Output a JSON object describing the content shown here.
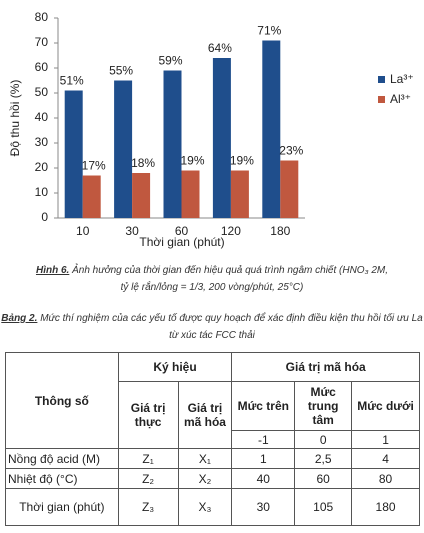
{
  "chart_data": {
    "type": "bar",
    "categories": [
      "10",
      "30",
      "60",
      "120",
      "180"
    ],
    "series": [
      {
        "name": "La³⁺",
        "color": "#1f4e8c",
        "values": [
          51,
          55,
          59,
          64,
          71
        ],
        "value_labels": [
          "51%",
          "55%",
          "59%",
          "64%",
          "71%"
        ]
      },
      {
        "name": "Al³⁺",
        "color": "#c0583f",
        "values": [
          17,
          18,
          19,
          19,
          23
        ],
        "value_labels": [
          "17%",
          "18%",
          "19%",
          "19%",
          "23%"
        ]
      }
    ],
    "y_label": "Độ thu hồi (%)",
    "x_label": "Thời gian (phút)",
    "ylim": [
      0,
      80
    ],
    "yticks": [
      0,
      10,
      20,
      30,
      40,
      50,
      60,
      70,
      80
    ],
    "grid": false,
    "legend": "right"
  },
  "figure_caption": {
    "label": "Hình 6.",
    "lines": [
      "Ảnh hưởng của thời gian đến hiệu quả quá trình ngâm chiết (HNO₃ 2M,",
      "tỷ lệ rắn/lỏng = 1/3, 200 vòng/phút, 25°C)"
    ]
  },
  "table_caption": {
    "label": "Bảng 2.",
    "lines": [
      "Mức thí nghiệm của các yếu tố được quy hoạch để xác định điều kiện thu hồi tối ưu La",
      "từ xúc tác FCC thải"
    ]
  },
  "table": {
    "header": {
      "parameter": "Thông số",
      "symbol": "Ký hiệu",
      "coded_value": "Giá trị mã hóa",
      "real_value": "Giá trị thực",
      "coded": "Giá trị mã hóa",
      "upper": "Mức trên",
      "center": "Mức trung tâm",
      "lower": "Mức dưới",
      "levels": [
        "-1",
        "0",
        "1"
      ]
    },
    "rows": [
      [
        "Nồng độ acid (M)",
        "Z₁",
        "X₁",
        "1",
        "2,5",
        "4"
      ],
      [
        "Nhiệt độ (°C)",
        "Z₂",
        "X₂",
        "40",
        "60",
        "80"
      ],
      [
        "Thời gian (phút)",
        "Z₃",
        "X₃",
        "30",
        "105",
        "180"
      ]
    ]
  }
}
